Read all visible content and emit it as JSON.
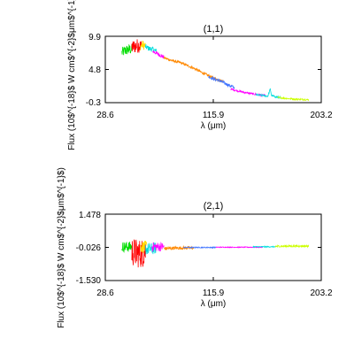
{
  "chart_data": [
    {
      "type": "line",
      "title": "(1,1)",
      "xlabel": "λ (μm)",
      "ylabel": "Flux (10$^{-18}$ W cm$^{-2}$μm$^{-1}$)",
      "xlim": [
        28.6,
        203.2
      ],
      "ylim": [
        -0.3,
        9.9
      ],
      "xticks": [
        "28.6",
        "115.9",
        "203.2"
      ],
      "yticks": [
        "9.9",
        "4.8",
        "-0.3"
      ],
      "grid": false,
      "legend": "none",
      "series": [
        {
          "color": "#00dd00",
          "noise": 0.8,
          "points": [
            [
              42,
              7.4
            ],
            [
              45,
              7.7
            ],
            [
              48,
              7.9
            ],
            [
              50,
              7.9
            ]
          ]
        },
        {
          "color": "#ff0000",
          "noise": 1.1,
          "points": [
            [
              50,
              8.2
            ],
            [
              53,
              8.4
            ],
            [
              56,
              8.5
            ],
            [
              58,
              8.3
            ]
          ]
        },
        {
          "color": "#ffdd00",
          "noise": 0.7,
          "points": [
            [
              57,
              8.4
            ],
            [
              59,
              8.6
            ],
            [
              61,
              8.4
            ]
          ]
        },
        {
          "color": "#00dddd",
          "noise": 0.4,
          "points": [
            [
              61,
              8.3
            ],
            [
              64,
              8.0
            ],
            [
              67,
              7.9
            ],
            [
              70,
              7.6
            ]
          ]
        },
        {
          "color": "#ff00ff",
          "noise": 0.3,
          "points": [
            [
              67,
              7.6
            ],
            [
              71,
              7.2
            ],
            [
              74,
              6.9
            ],
            [
              76,
              6.7
            ]
          ]
        },
        {
          "color": "#ff8800",
          "noise": 0.2,
          "points": [
            [
              76,
              6.6
            ],
            [
              82,
              6.2
            ],
            [
              90,
              5.8
            ],
            [
              100,
              5.0
            ],
            [
              108,
              4.2
            ],
            [
              115,
              3.6
            ],
            [
              120,
              3.2
            ],
            [
              124,
              3.0
            ]
          ]
        },
        {
          "color": "#4477ff",
          "noise": 0.25,
          "points": [
            [
              112,
              3.7
            ],
            [
              117,
              3.3
            ],
            [
              122,
              3.0
            ],
            [
              127,
              2.5
            ],
            [
              133,
              2.0
            ]
          ]
        },
        {
          "color": "#ff00ff",
          "noise": 0.15,
          "points": [
            [
              130,
              1.8
            ],
            [
              138,
              1.4
            ],
            [
              146,
              1.1
            ],
            [
              153,
              0.9
            ],
            [
              158,
              0.8
            ]
          ]
        },
        {
          "color": "#00dddd",
          "noise": 0.15,
          "points": [
            [
              150,
              0.9
            ],
            [
              156,
              0.8
            ],
            [
              160,
              0.7
            ],
            [
              162,
              1.8
            ],
            [
              163,
              0.8
            ],
            [
              166,
              0.6
            ],
            [
              170,
              0.5
            ]
          ]
        },
        {
          "color": "#ccff00",
          "noise": 0.12,
          "points": [
            [
              168,
              0.5
            ],
            [
              175,
              0.35
            ],
            [
              182,
              0.25
            ],
            [
              188,
              0.2
            ],
            [
              193,
              0.15
            ]
          ]
        }
      ]
    },
    {
      "type": "line",
      "title": "(2,1)",
      "xlabel": "λ (μm)",
      "ylabel": "Flux (10$^{-18}$ W cm$^{-2}$μm$^{-1}$)",
      "xlim": [
        28.6,
        203.2
      ],
      "ylim": [
        -1.53,
        1.478
      ],
      "xticks": [
        "28.6",
        "115.9",
        "203.2"
      ],
      "yticks": [
        "1.478",
        "-0.026",
        "-1.530"
      ],
      "grid": false,
      "legend": "none",
      "series": [
        {
          "color": "#00dd00",
          "noise": 0.8,
          "points": [
            [
              42,
              0.0
            ],
            [
              46,
              0.0
            ],
            [
              50,
              0.0
            ]
          ]
        },
        {
          "color": "#ff0000",
          "noise": 2.2,
          "points": [
            [
              50,
              -0.2
            ],
            [
              54,
              -0.3
            ],
            [
              58,
              -0.3
            ],
            [
              61,
              -0.2
            ]
          ]
        },
        {
          "color": "#ffdd00",
          "noise": 0.9,
          "points": [
            [
              57,
              0.0
            ],
            [
              60,
              0.0
            ],
            [
              62,
              0.0
            ]
          ]
        },
        {
          "color": "#00dddd",
          "noise": 0.9,
          "points": [
            [
              61,
              -0.1
            ],
            [
              66,
              -0.1
            ],
            [
              70,
              -0.05
            ]
          ]
        },
        {
          "color": "#ff00ff",
          "noise": 0.7,
          "points": [
            [
              66,
              0.0
            ],
            [
              71,
              0.0
            ],
            [
              76,
              0.0
            ]
          ]
        },
        {
          "color": "#ff8800",
          "noise": 0.25,
          "points": [
            [
              76,
              -0.08
            ],
            [
              84,
              -0.06
            ],
            [
              92,
              -0.05
            ],
            [
              100,
              -0.05
            ]
          ]
        },
        {
          "color": "#4477ff",
          "noise": 0.08,
          "points": [
            [
              92,
              -0.03
            ],
            [
              105,
              -0.03
            ],
            [
              118,
              -0.03
            ]
          ]
        },
        {
          "color": "#ff00ff",
          "noise": 0.06,
          "points": [
            [
              118,
              -0.02
            ],
            [
              133,
              -0.02
            ],
            [
              148,
              -0.02
            ],
            [
              156,
              -0.02
            ]
          ]
        },
        {
          "color": "#00dddd",
          "noise": 0.08,
          "points": [
            [
              148,
              0.0
            ],
            [
              158,
              0.0
            ],
            [
              168,
              0.0
            ]
          ]
        },
        {
          "color": "#ccff00",
          "noise": 0.15,
          "points": [
            [
              166,
              0.02
            ],
            [
              175,
              0.03
            ],
            [
              185,
              0.03
            ],
            [
              193,
              0.03
            ]
          ]
        }
      ]
    }
  ]
}
